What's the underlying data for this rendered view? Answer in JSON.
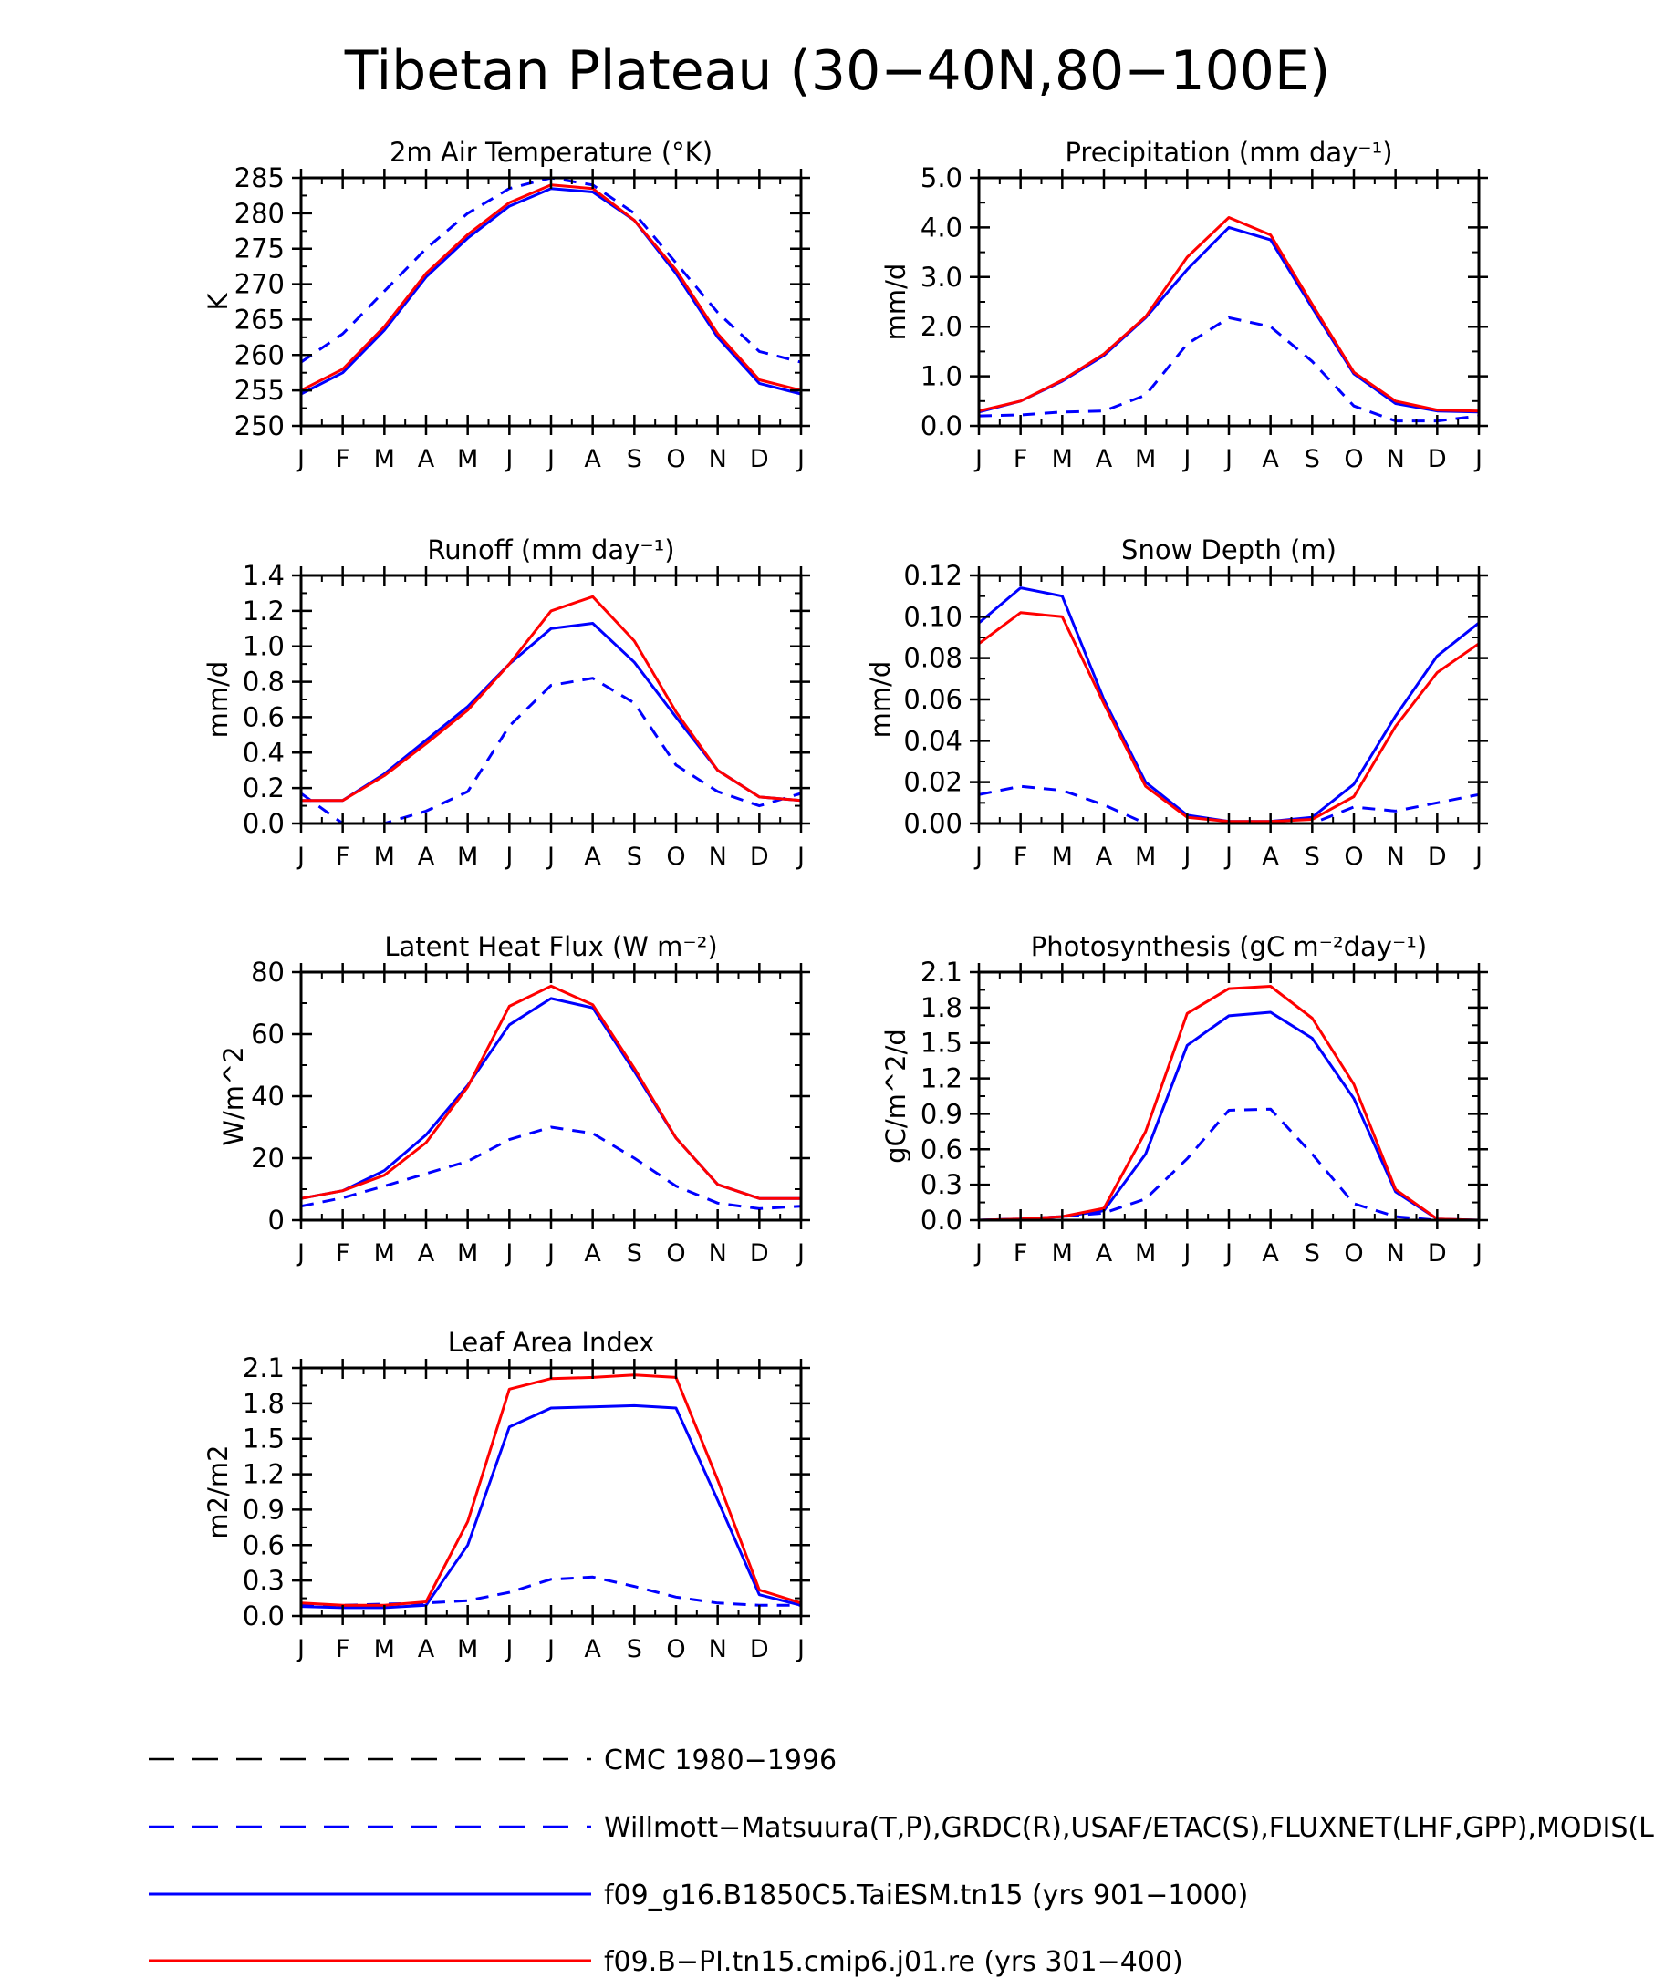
{
  "figure_title": "Tibetan Plateau (30−40N,80−100E)",
  "month_ticks": [
    "J",
    "F",
    "M",
    "A",
    "M",
    "J",
    "J",
    "A",
    "S",
    "O",
    "N",
    "D",
    "J"
  ],
  "colors": {
    "obs": "#0000ff",
    "model1": "#0000ff",
    "model2": "#ff0000",
    "cmc": "#000000"
  },
  "legend": [
    {
      "key": "cmc",
      "label": "CMC 1980−1996",
      "style": "dashed",
      "color": "#000000"
    },
    {
      "key": "obs",
      "label": "Willmott−Matsuura(T,P),GRDC(R),USAF/ETAC(S),FLUXNET(LHF,GPP),MODIS(L",
      "style": "dashed",
      "color": "#0000ff"
    },
    {
      "key": "model1",
      "label": "f09_g16.B1850C5.TaiESM.tn15 (yrs 901−1000)",
      "style": "solid",
      "color": "#0000ff"
    },
    {
      "key": "model2",
      "label": "f09.B−PI.tn15.cmip6.j01.re (yrs 301−400)",
      "style": "solid",
      "color": "#ff0000"
    }
  ],
  "chart_data": [
    {
      "type": "line",
      "title": "2m Air Temperature (°K)",
      "ylabel": "K",
      "ylim": [
        250,
        285
      ],
      "yticks": [
        "250",
        "255",
        "260",
        "265",
        "270",
        "275",
        "280",
        "285"
      ],
      "categories": [
        "J",
        "F",
        "M",
        "A",
        "M",
        "J",
        "J",
        "A",
        "S",
        "O",
        "N",
        "D",
        "J"
      ],
      "series": [
        {
          "key": "obs",
          "values": [
            259,
            263,
            269,
            275,
            280,
            283.5,
            285,
            284,
            280,
            273,
            266,
            260.5,
            259
          ]
        },
        {
          "key": "model1",
          "values": [
            254.5,
            257.5,
            263.5,
            271,
            276.5,
            281,
            283.5,
            283,
            279,
            271.5,
            262.5,
            256,
            254.5
          ]
        },
        {
          "key": "model2",
          "values": [
            255,
            258,
            264,
            271.5,
            277,
            281.5,
            284,
            283.5,
            279,
            272,
            263,
            256.5,
            255
          ]
        }
      ]
    },
    {
      "type": "line",
      "title": "Precipitation (mm day⁻¹)",
      "ylabel": "mm/d",
      "ylim": [
        0,
        5
      ],
      "yticks": [
        "0.0",
        "1.0",
        "2.0",
        "3.0",
        "4.0",
        "5.0"
      ],
      "categories": [
        "J",
        "F",
        "M",
        "A",
        "M",
        "J",
        "J",
        "A",
        "S",
        "O",
        "N",
        "D",
        "J"
      ],
      "series": [
        {
          "key": "obs",
          "values": [
            0.2,
            0.22,
            0.28,
            0.3,
            0.62,
            1.65,
            2.18,
            2.0,
            1.3,
            0.4,
            0.1,
            0.1,
            0.2
          ]
        },
        {
          "key": "model1",
          "values": [
            0.28,
            0.5,
            0.9,
            1.42,
            2.18,
            3.15,
            4.0,
            3.75,
            2.38,
            1.05,
            0.45,
            0.3,
            0.28
          ]
        },
        {
          "key": "model2",
          "values": [
            0.3,
            0.5,
            0.92,
            1.45,
            2.2,
            3.4,
            4.2,
            3.85,
            2.45,
            1.08,
            0.5,
            0.32,
            0.3
          ]
        }
      ]
    },
    {
      "type": "line",
      "title": "Runoff (mm day⁻¹)",
      "ylabel": "mm/d",
      "ylim": [
        0,
        1.4
      ],
      "yticks": [
        "0.0",
        "0.2",
        "0.4",
        "0.6",
        "0.8",
        "1.0",
        "1.2",
        "1.4"
      ],
      "categories": [
        "J",
        "F",
        "M",
        "A",
        "M",
        "J",
        "J",
        "A",
        "S",
        "O",
        "N",
        "D",
        "J"
      ],
      "series": [
        {
          "key": "obs",
          "values": [
            0.17,
            0.0,
            0.0,
            0.07,
            0.18,
            0.55,
            0.78,
            0.82,
            0.68,
            0.33,
            0.18,
            0.1,
            0.17
          ]
        },
        {
          "key": "model1",
          "values": [
            0.13,
            0.13,
            0.28,
            0.47,
            0.66,
            0.9,
            1.1,
            1.13,
            0.91,
            0.6,
            0.3,
            0.15,
            0.13
          ]
        },
        {
          "key": "model2",
          "values": [
            0.13,
            0.13,
            0.27,
            0.45,
            0.64,
            0.9,
            1.2,
            1.28,
            1.03,
            0.63,
            0.3,
            0.15,
            0.13
          ]
        }
      ]
    },
    {
      "type": "line",
      "title": "Snow Depth (m)",
      "ylabel": "mm/d",
      "ylim": [
        0,
        0.12
      ],
      "yticks": [
        "0.00",
        "0.02",
        "0.04",
        "0.06",
        "0.08",
        "0.10",
        "0.12"
      ],
      "categories": [
        "J",
        "F",
        "M",
        "A",
        "M",
        "J",
        "J",
        "A",
        "S",
        "O",
        "N",
        "D",
        "J"
      ],
      "series": [
        {
          "key": "cmc",
          "values": [
            0.0,
            0.0,
            0.0,
            0.0,
            0.0,
            0.0,
            0.0,
            0.0,
            0.0,
            0.0,
            0.0,
            0.0,
            0.0
          ]
        },
        {
          "key": "obs",
          "values": [
            0.014,
            0.018,
            0.016,
            0.009,
            0.0,
            0.0,
            0.0,
            0.0,
            0.0,
            0.008,
            0.006,
            0.01,
            0.014
          ]
        },
        {
          "key": "model1",
          "values": [
            0.097,
            0.114,
            0.11,
            0.06,
            0.02,
            0.004,
            0.001,
            0.001,
            0.003,
            0.019,
            0.052,
            0.081,
            0.097
          ]
        },
        {
          "key": "model2",
          "values": [
            0.087,
            0.102,
            0.1,
            0.058,
            0.018,
            0.003,
            0.001,
            0.001,
            0.002,
            0.013,
            0.047,
            0.073,
            0.087
          ]
        }
      ]
    },
    {
      "type": "line",
      "title": "Latent Heat Flux (W m⁻²)",
      "ylabel": "W/m^2",
      "ylim": [
        0,
        80
      ],
      "yticks": [
        "0",
        "20",
        "40",
        "60",
        "80"
      ],
      "categories": [
        "J",
        "F",
        "M",
        "A",
        "M",
        "J",
        "J",
        "A",
        "S",
        "O",
        "N",
        "D",
        "J"
      ],
      "series": [
        {
          "key": "obs",
          "values": [
            4.5,
            7.2,
            11,
            15,
            19,
            26,
            30,
            28,
            20,
            11,
            5.5,
            3.7,
            4.5
          ]
        },
        {
          "key": "model1",
          "values": [
            7,
            9.5,
            16,
            27.5,
            43.5,
            63,
            71.5,
            68.5,
            48,
            26.5,
            11.5,
            7,
            7
          ]
        },
        {
          "key": "model2",
          "values": [
            7,
            9.5,
            14.5,
            25,
            43,
            69,
            75.5,
            69.5,
            49,
            26.5,
            11.5,
            7,
            7
          ]
        }
      ]
    },
    {
      "type": "line",
      "title": "Photosynthesis (gC m⁻²day⁻¹)",
      "ylabel": "gC/m^2/d",
      "ylim": [
        0,
        2.1
      ],
      "yticks": [
        "0.0",
        "0.3",
        "0.6",
        "0.9",
        "1.2",
        "1.5",
        "1.8",
        "2.1"
      ],
      "categories": [
        "J",
        "F",
        "M",
        "A",
        "M",
        "J",
        "J",
        "A",
        "S",
        "O",
        "N",
        "D",
        "J"
      ],
      "series": [
        {
          "key": "obs",
          "values": [
            0.0,
            0.01,
            0.03,
            0.06,
            0.18,
            0.52,
            0.93,
            0.94,
            0.56,
            0.14,
            0.03,
            0.0,
            0.0
          ]
        },
        {
          "key": "model1",
          "values": [
            0.0,
            0.01,
            0.03,
            0.08,
            0.56,
            1.48,
            1.73,
            1.76,
            1.54,
            1.03,
            0.24,
            0.01,
            0.0
          ]
        },
        {
          "key": "model2",
          "values": [
            0.0,
            0.01,
            0.03,
            0.1,
            0.75,
            1.75,
            1.96,
            1.98,
            1.71,
            1.15,
            0.26,
            0.01,
            0.0
          ]
        }
      ]
    },
    {
      "type": "line",
      "title": "Leaf Area Index",
      "ylabel": "m2/m2",
      "ylim": [
        0,
        2.1
      ],
      "yticks": [
        "0.0",
        "0.3",
        "0.6",
        "0.9",
        "1.2",
        "1.5",
        "1.8",
        "2.1"
      ],
      "categories": [
        "J",
        "F",
        "M",
        "A",
        "M",
        "J",
        "J",
        "A",
        "S",
        "O",
        "N",
        "D",
        "J"
      ],
      "series": [
        {
          "key": "obs",
          "values": [
            0.09,
            0.09,
            0.1,
            0.11,
            0.13,
            0.2,
            0.31,
            0.33,
            0.25,
            0.16,
            0.11,
            0.09,
            0.09
          ]
        },
        {
          "key": "model1",
          "values": [
            0.08,
            0.07,
            0.07,
            0.09,
            0.6,
            1.6,
            1.76,
            1.77,
            1.78,
            1.76,
            0.98,
            0.18,
            0.09
          ]
        },
        {
          "key": "model2",
          "values": [
            0.11,
            0.09,
            0.09,
            0.12,
            0.8,
            1.92,
            2.01,
            2.02,
            2.04,
            2.02,
            1.15,
            0.22,
            0.11
          ]
        }
      ]
    }
  ]
}
